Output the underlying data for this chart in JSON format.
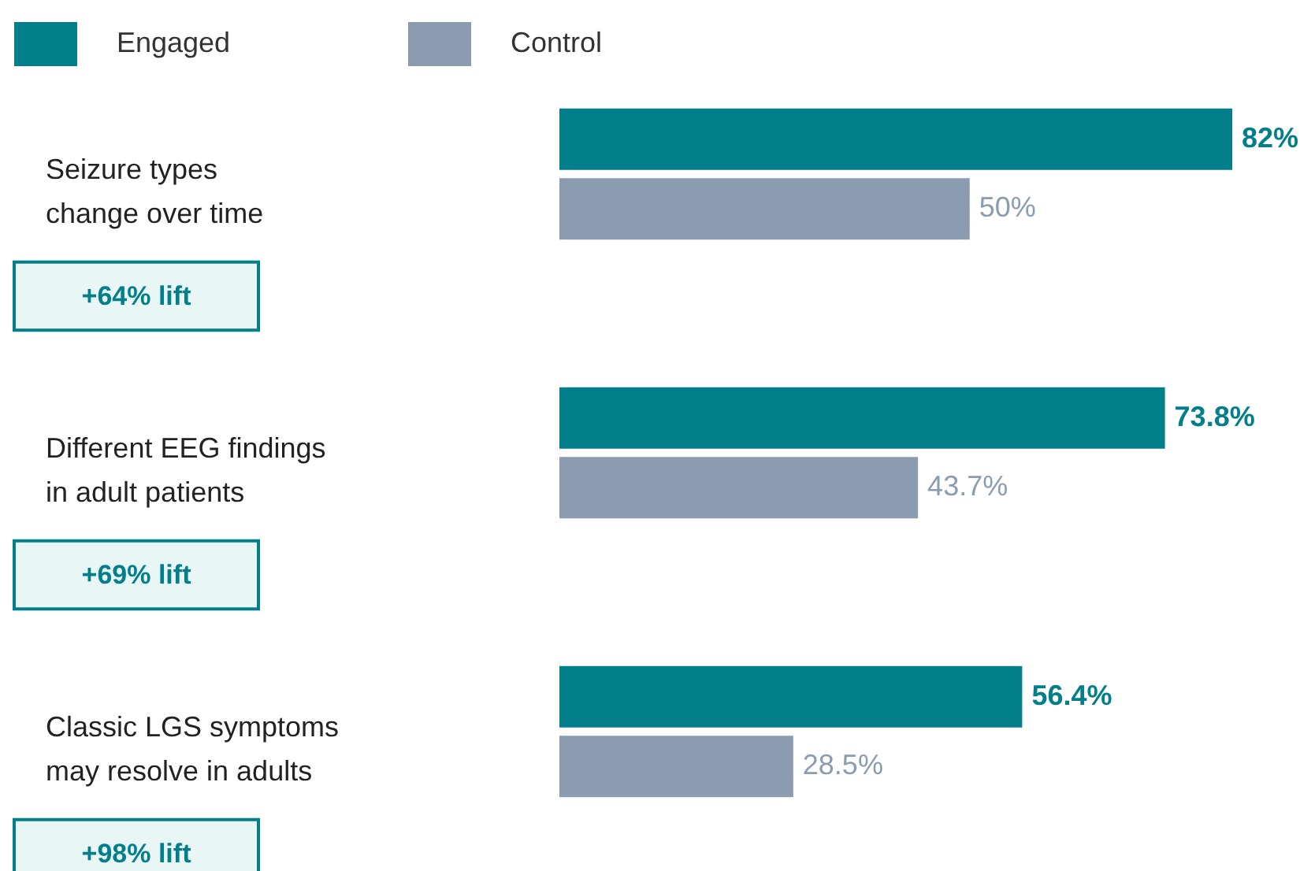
{
  "chart_data": {
    "type": "bar",
    "orientation": "horizontal",
    "legend": "top left",
    "categories": [
      "Seizure types change over time",
      "Different EEG findings in adult patients",
      "Classic LGS symptoms may resolve in adults"
    ],
    "series": [
      {
        "name": "Engaged",
        "color": "#037f8c",
        "values": [
          82,
          73.8,
          56.4
        ],
        "value_labels": [
          "82%",
          "73.8%",
          "56.4%"
        ]
      },
      {
        "name": "Control",
        "color": "#8b9cb1",
        "values": [
          50,
          43.7,
          28.5
        ],
        "value_labels": [
          "50%",
          "43.7%",
          "28.5%"
        ]
      }
    ],
    "annotations": [
      "+64% lift",
      "+69% lift",
      "+98% lift"
    ]
  }
}
